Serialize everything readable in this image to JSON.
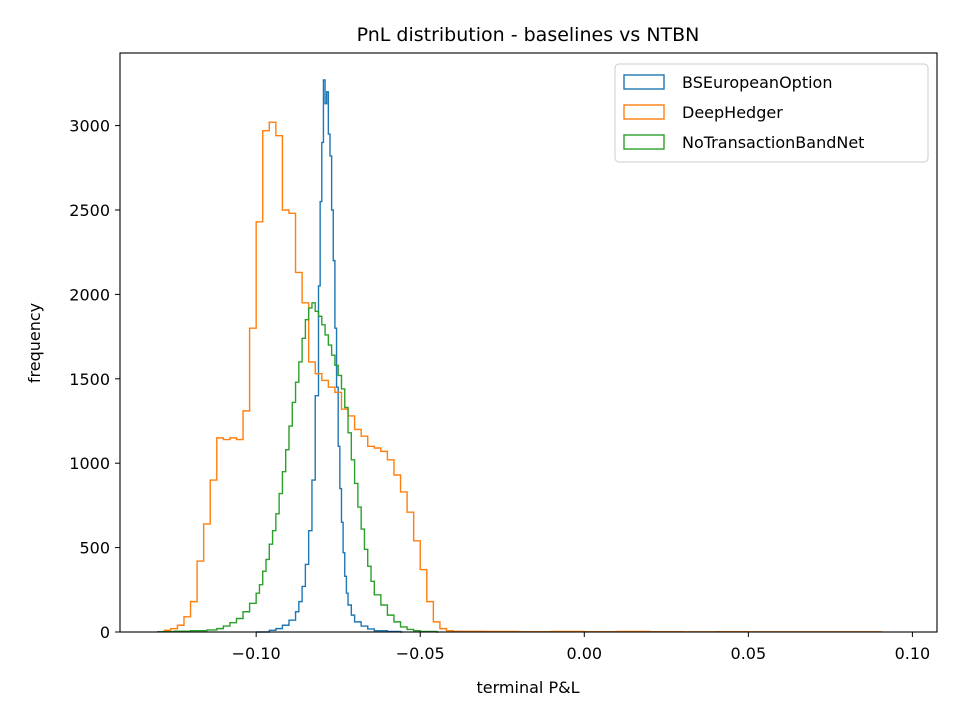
{
  "chart_data": {
    "type": "histogram",
    "title": "PnL distribution - baselines vs NTBN",
    "xlabel": "terminal P&L",
    "ylabel": "frequency",
    "xlim": [
      -0.1415,
      0.1075
    ],
    "ylim": [
      0,
      3430
    ],
    "xticks": [
      -0.1,
      -0.05,
      0.0,
      0.05,
      0.1
    ],
    "xtick_labels": [
      "−0.10",
      "−0.05",
      "0.00",
      "0.05",
      "0.10"
    ],
    "yticks": [
      0,
      500,
      1000,
      1500,
      2000,
      2500,
      3000
    ],
    "ytick_labels": [
      "0",
      "500",
      "1000",
      "1500",
      "2000",
      "2500",
      "3000"
    ],
    "grid": false,
    "legend_position": "top-right",
    "series": [
      {
        "name": "BSEuropeanOption",
        "color": "#1f77b4",
        "points": [
          [
            -0.1,
            0
          ],
          [
            -0.096,
            10
          ],
          [
            -0.094,
            20
          ],
          [
            -0.092,
            40
          ],
          [
            -0.09,
            70
          ],
          [
            -0.088,
            120
          ],
          [
            -0.087,
            180
          ],
          [
            -0.086,
            270
          ],
          [
            -0.085,
            400
          ],
          [
            -0.084,
            600
          ],
          [
            -0.083,
            900
          ],
          [
            -0.082,
            1400
          ],
          [
            -0.081,
            2050
          ],
          [
            -0.0805,
            2550
          ],
          [
            -0.08,
            2900
          ],
          [
            -0.0795,
            3270
          ],
          [
            -0.079,
            3130
          ],
          [
            -0.0785,
            3200
          ],
          [
            -0.078,
            2950
          ],
          [
            -0.0775,
            2820
          ],
          [
            -0.077,
            2500
          ],
          [
            -0.0765,
            2200
          ],
          [
            -0.076,
            1800
          ],
          [
            -0.0755,
            1450
          ],
          [
            -0.075,
            1100
          ],
          [
            -0.0745,
            850
          ],
          [
            -0.074,
            650
          ],
          [
            -0.0735,
            470
          ],
          [
            -0.073,
            330
          ],
          [
            -0.0725,
            230
          ],
          [
            -0.072,
            160
          ],
          [
            -0.071,
            100
          ],
          [
            -0.07,
            60
          ],
          [
            -0.068,
            35
          ],
          [
            -0.066,
            18
          ],
          [
            -0.064,
            8
          ],
          [
            -0.06,
            3
          ],
          [
            -0.056,
            0
          ]
        ]
      },
      {
        "name": "DeepHedger",
        "color": "#ff7f0e",
        "points": [
          [
            -0.128,
            10
          ],
          [
            -0.126,
            20
          ],
          [
            -0.124,
            40
          ],
          [
            -0.122,
            90
          ],
          [
            -0.12,
            180
          ],
          [
            -0.118,
            420
          ],
          [
            -0.116,
            640
          ],
          [
            -0.114,
            900
          ],
          [
            -0.112,
            1150
          ],
          [
            -0.11,
            1140
          ],
          [
            -0.108,
            1150
          ],
          [
            -0.106,
            1140
          ],
          [
            -0.104,
            1310
          ],
          [
            -0.102,
            1800
          ],
          [
            -0.1,
            2430
          ],
          [
            -0.098,
            2970
          ],
          [
            -0.096,
            3020
          ],
          [
            -0.094,
            2940
          ],
          [
            -0.092,
            2500
          ],
          [
            -0.09,
            2480
          ],
          [
            -0.088,
            2130
          ],
          [
            -0.086,
            1950
          ],
          [
            -0.084,
            1600
          ],
          [
            -0.082,
            1530
          ],
          [
            -0.08,
            1490
          ],
          [
            -0.078,
            1450
          ],
          [
            -0.076,
            1420
          ],
          [
            -0.074,
            1320
          ],
          [
            -0.072,
            1280
          ],
          [
            -0.07,
            1200
          ],
          [
            -0.068,
            1160
          ],
          [
            -0.066,
            1100
          ],
          [
            -0.064,
            1090
          ],
          [
            -0.062,
            1070
          ],
          [
            -0.06,
            1020
          ],
          [
            -0.058,
            930
          ],
          [
            -0.056,
            830
          ],
          [
            -0.054,
            710
          ],
          [
            -0.052,
            540
          ],
          [
            -0.05,
            370
          ],
          [
            -0.048,
            180
          ],
          [
            -0.046,
            60
          ],
          [
            -0.044,
            20
          ],
          [
            -0.042,
            8
          ],
          [
            -0.04,
            4
          ],
          [
            -0.03,
            3
          ],
          [
            -0.02,
            2
          ],
          [
            -0.01,
            3
          ],
          [
            0.0,
            2
          ],
          [
            0.01,
            3
          ],
          [
            0.02,
            2
          ],
          [
            0.03,
            1
          ],
          [
            0.04,
            2
          ],
          [
            0.05,
            1
          ],
          [
            0.06,
            1
          ],
          [
            0.07,
            1
          ],
          [
            0.08,
            1
          ],
          [
            0.09,
            1
          ]
        ]
      },
      {
        "name": "NoTransactionBandNet",
        "color": "#2ca02c",
        "points": [
          [
            -0.13,
            2
          ],
          [
            -0.125,
            5
          ],
          [
            -0.12,
            8
          ],
          [
            -0.115,
            12
          ],
          [
            -0.112,
            20
          ],
          [
            -0.11,
            35
          ],
          [
            -0.108,
            55
          ],
          [
            -0.106,
            80
          ],
          [
            -0.104,
            120
          ],
          [
            -0.102,
            170
          ],
          [
            -0.1,
            230
          ],
          [
            -0.099,
            280
          ],
          [
            -0.098,
            360
          ],
          [
            -0.097,
            430
          ],
          [
            -0.096,
            520
          ],
          [
            -0.095,
            600
          ],
          [
            -0.094,
            700
          ],
          [
            -0.093,
            820
          ],
          [
            -0.092,
            950
          ],
          [
            -0.091,
            1080
          ],
          [
            -0.09,
            1220
          ],
          [
            -0.089,
            1360
          ],
          [
            -0.088,
            1480
          ],
          [
            -0.087,
            1600
          ],
          [
            -0.086,
            1740
          ],
          [
            -0.085,
            1850
          ],
          [
            -0.084,
            1920
          ],
          [
            -0.083,
            1950
          ],
          [
            -0.082,
            1900
          ],
          [
            -0.081,
            1870
          ],
          [
            -0.08,
            1820
          ],
          [
            -0.079,
            1760
          ],
          [
            -0.078,
            1700
          ],
          [
            -0.077,
            1640
          ],
          [
            -0.076,
            1580
          ],
          [
            -0.075,
            1520
          ],
          [
            -0.074,
            1440
          ],
          [
            -0.073,
            1330
          ],
          [
            -0.072,
            1180
          ],
          [
            -0.071,
            1020
          ],
          [
            -0.07,
            880
          ],
          [
            -0.069,
            740
          ],
          [
            -0.068,
            610
          ],
          [
            -0.067,
            490
          ],
          [
            -0.066,
            390
          ],
          [
            -0.065,
            300
          ],
          [
            -0.064,
            220
          ],
          [
            -0.062,
            160
          ],
          [
            -0.06,
            100
          ],
          [
            -0.058,
            60
          ],
          [
            -0.056,
            30
          ],
          [
            -0.054,
            15
          ],
          [
            -0.052,
            8
          ],
          [
            -0.05,
            3
          ],
          [
            -0.045,
            0
          ]
        ]
      }
    ]
  }
}
